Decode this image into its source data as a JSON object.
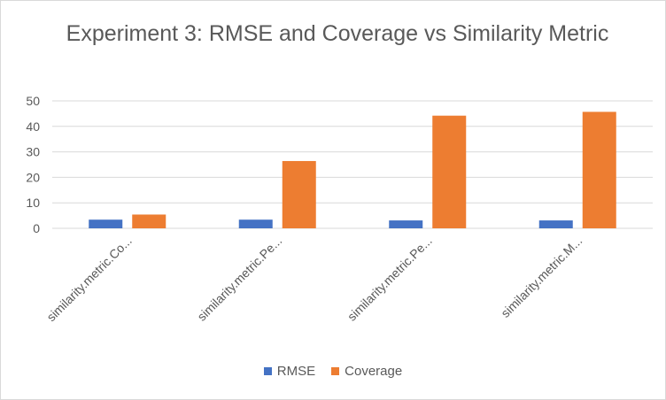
{
  "colors": {
    "rmse": "#4472c4",
    "coverage": "#ed7d31",
    "grid": "#d9d9d9",
    "text": "#595959"
  },
  "chart_data": {
    "type": "bar",
    "title": "Experiment 3: RMSE and Coverage vs Similarity Metric",
    "xlabel": "",
    "ylabel": "",
    "ylim": [
      0,
      50
    ],
    "yticks": [
      0,
      10,
      20,
      30,
      40,
      50
    ],
    "grid": true,
    "legend_position": "bottom",
    "categories": [
      "similarity.metric.Co...",
      "similarity.metric.Pe...",
      "similarity.metric.Pe...",
      "similarity.metric.M..."
    ],
    "series": [
      {
        "name": "RMSE",
        "color": "#4472c4",
        "values": [
          3.4,
          3.4,
          3.1,
          3.1
        ]
      },
      {
        "name": "Coverage",
        "color": "#ed7d31",
        "values": [
          5.4,
          26.4,
          44.2,
          45.7
        ]
      }
    ]
  }
}
